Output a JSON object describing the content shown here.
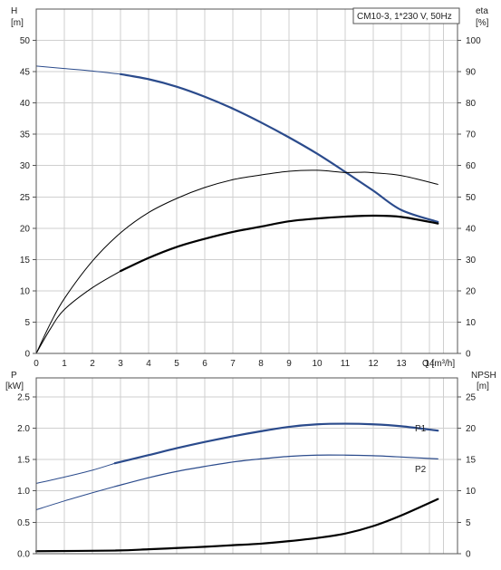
{
  "chart_data": [
    {
      "type": "line",
      "id": "top",
      "legend": "CM10-3, 1*230 V, 50Hz",
      "x_unit_label": "Q [m³/h]",
      "xlim": [
        0,
        15
      ],
      "x_ticks": [
        0,
        1,
        2,
        3,
        4,
        5,
        6,
        7,
        8,
        9,
        10,
        11,
        12,
        13,
        14
      ],
      "left_axis": {
        "label": "H",
        "unit": "[m]",
        "lim": [
          0,
          55
        ],
        "ticks": [
          0,
          5,
          10,
          15,
          20,
          25,
          30,
          35,
          40,
          45,
          50
        ]
      },
      "right_axis": {
        "label": "eta",
        "unit": "[%]",
        "lim": [
          0,
          110
        ],
        "ticks": [
          0,
          10,
          20,
          30,
          40,
          50,
          60,
          70,
          80,
          90,
          100
        ]
      },
      "colors": {
        "head": "#2b4b8c",
        "eta_thin": "#000000",
        "eta_bold": "#000000"
      },
      "series": [
        {
          "key": "head",
          "axis": "left",
          "width": 2.2,
          "color": "#2b4b8c",
          "x": [
            0,
            1,
            2,
            3,
            4,
            5,
            6,
            7,
            8,
            9,
            10,
            11,
            12,
            13,
            14.3
          ],
          "y": [
            45.9,
            45.5,
            45.1,
            44.6,
            43.8,
            42.6,
            41.0,
            39.1,
            36.9,
            34.5,
            31.9,
            29.0,
            26.0,
            22.9,
            21.0
          ],
          "dashed_until": 2.8
        },
        {
          "key": "eta_thin",
          "axis": "right",
          "width": 1,
          "color": "#000000",
          "x": [
            0,
            0.5,
            1,
            2,
            3,
            4,
            5,
            6,
            7,
            8,
            9,
            10,
            11,
            11.7,
            12,
            13,
            14.3
          ],
          "y": [
            0,
            9.5,
            17.5,
            29.5,
            38.5,
            45.0,
            49.5,
            53.0,
            55.5,
            57.0,
            58.2,
            58.5,
            57.8,
            57.9,
            57.7,
            56.8,
            54.0
          ]
        },
        {
          "key": "eta_bold",
          "axis": "right",
          "width": 2.2,
          "color": "#000000",
          "x": [
            0,
            0.5,
            1,
            2,
            3,
            4,
            5,
            6,
            7,
            8,
            9,
            10,
            11,
            12,
            13,
            14.3
          ],
          "y": [
            0,
            7.8,
            14.0,
            21.0,
            26.3,
            30.5,
            34.0,
            36.6,
            38.8,
            40.5,
            42.2,
            43.1,
            43.7,
            44.0,
            43.6,
            41.5
          ],
          "dashed_until": 2.8
        }
      ]
    },
    {
      "type": "line",
      "id": "bottom",
      "xlim": [
        0,
        15
      ],
      "x_ticks": [
        0,
        1,
        2,
        3,
        4,
        5,
        6,
        7,
        8,
        9,
        10,
        11,
        12,
        13,
        14
      ],
      "left_axis": {
        "label": "P",
        "unit": "[kW]",
        "lim": [
          0,
          2.8
        ],
        "ticks": [
          "0.0",
          "0.5",
          "1.0",
          "1.5",
          "2.0",
          "2.5"
        ]
      },
      "right_axis": {
        "label": "NPSH",
        "unit": "[m]",
        "lim": [
          0,
          28
        ],
        "ticks": [
          0,
          5,
          10,
          15,
          20,
          25
        ]
      },
      "series": [
        {
          "key": "p1",
          "name": "P1",
          "axis": "left",
          "width": 2.2,
          "color": "#2b4b8c",
          "x": [
            0,
            1,
            2,
            2.8,
            4,
            5,
            6,
            7,
            8,
            9,
            10,
            11,
            12,
            13,
            14.3
          ],
          "y": [
            1.12,
            1.22,
            1.33,
            1.44,
            1.57,
            1.68,
            1.78,
            1.87,
            1.95,
            2.02,
            2.06,
            2.07,
            2.06,
            2.03,
            1.96
          ],
          "dashed_until": 2.8
        },
        {
          "key": "p2",
          "name": "P2",
          "axis": "left",
          "width": 1.2,
          "color": "#2b4b8c",
          "x": [
            0,
            1,
            2,
            2.8,
            4,
            5,
            6,
            7,
            8,
            9,
            10,
            11,
            12,
            13,
            14.3
          ],
          "y": [
            0.7,
            0.84,
            0.97,
            1.07,
            1.21,
            1.31,
            1.39,
            1.46,
            1.51,
            1.55,
            1.57,
            1.57,
            1.56,
            1.54,
            1.51
          ],
          "dashed_until": 2.8
        },
        {
          "key": "npsh",
          "axis": "right",
          "width": 2.2,
          "color": "#000000",
          "x": [
            0,
            2.8,
            4,
            5,
            6,
            7,
            8,
            9,
            10,
            11,
            12,
            13,
            14.3
          ],
          "y": [
            0.4,
            0.5,
            0.7,
            0.9,
            1.1,
            1.35,
            1.6,
            2.0,
            2.5,
            3.2,
            4.4,
            6.1,
            8.7
          ]
        }
      ]
    }
  ]
}
